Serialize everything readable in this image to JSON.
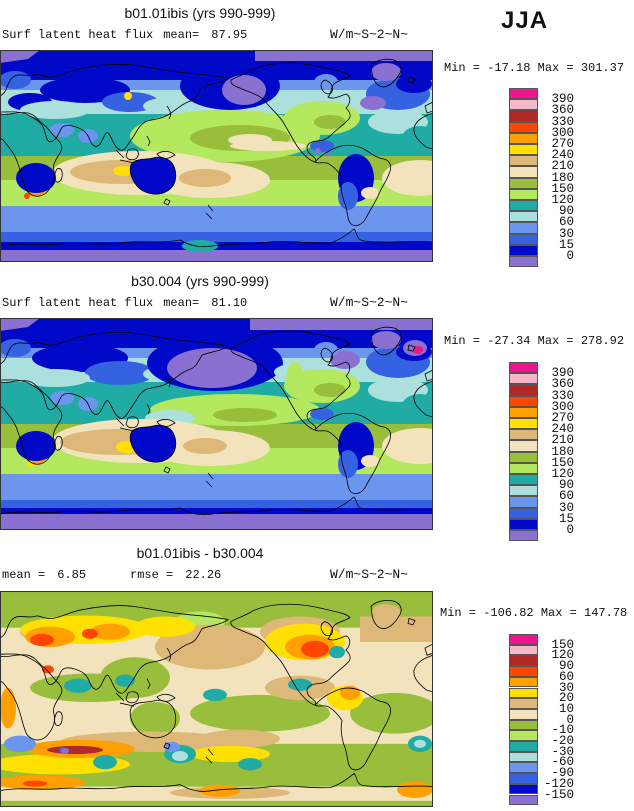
{
  "header": {
    "season_label": "JJA"
  },
  "palette": [
    "#F0148C",
    "#F8B7C8",
    "#B02828",
    "#FF4500",
    "#FFA000",
    "#FFE000",
    "#DDB878",
    "#F2E3BD",
    "#98BE3C",
    "#B4E85E",
    "#20ACA4",
    "#ACE0DC",
    "#6C95EE",
    "#3462E0",
    "#0009C8",
    "#8A70D0"
  ],
  "panels": [
    {
      "title": "b01.01ibis (yrs 990-999)",
      "var_label": "Surf latent heat flux",
      "mean_label": "mean=",
      "mean_value": "87.95",
      "units": "W/m~S~2~N~",
      "minmax_text": "Min = -17.18 Max = 301.37",
      "legend_labels": [
        "390",
        "360",
        "330",
        "300",
        "270",
        "240",
        "210",
        "180",
        "150",
        "120",
        "90",
        "60",
        "30",
        "15",
        "0"
      ]
    },
    {
      "title": "b30.004 (yrs 990-999)",
      "var_label": "Surf latent heat flux",
      "mean_label": "mean=",
      "mean_value": "81.10",
      "units": "W/m~S~2~N~",
      "minmax_text": "Min = -27.34 Max = 278.92",
      "legend_labels": [
        "390",
        "360",
        "330",
        "300",
        "270",
        "240",
        "210",
        "180",
        "150",
        "120",
        "90",
        "60",
        "30",
        "15",
        "0"
      ]
    },
    {
      "title": "b01.01ibis - b30.004",
      "mean_label": "mean =",
      "mean_value": "6.85",
      "rmse_label": "rmse =",
      "rmse_value": "22.26",
      "units": "W/m~S~2~N~",
      "minmax_text": "Min = -106.82 Max = 147.78",
      "legend_labels": [
        "150",
        "120",
        "90",
        "60",
        "30",
        "20",
        "10",
        "0",
        "-10",
        "-20",
        "-30",
        "-60",
        "-90",
        "-120",
        "-150"
      ]
    }
  ],
  "chart_data": [
    {
      "type": "heatmap",
      "title": "b01.01ibis (yrs 990-999)",
      "variable": "Surf latent heat flux",
      "season": "JJA",
      "units": "W/m~S~2~N~",
      "mean": 87.95,
      "min": -17.18,
      "max": 301.37,
      "contour_levels": [
        0,
        15,
        30,
        60,
        90,
        120,
        150,
        180,
        210,
        240,
        270,
        300,
        330,
        360,
        390
      ],
      "palette_high_to_low": [
        "#F0148C",
        "#F8B7C8",
        "#B02828",
        "#FF4500",
        "#FFA000",
        "#FFE000",
        "#DDB878",
        "#F2E3BD",
        "#98BE3C",
        "#B4E85E",
        "#20ACA4",
        "#ACE0DC",
        "#6C95EE",
        "#3462E0",
        "#0009C8",
        "#8A70D0"
      ],
      "projection": "global cylindrical equidistant, lon 0-360E, lat 90N-90S",
      "legend_position": "right"
    },
    {
      "type": "heatmap",
      "title": "b30.004 (yrs 990-999)",
      "variable": "Surf latent heat flux",
      "season": "JJA",
      "units": "W/m~S~2~N~",
      "mean": 81.1,
      "min": -27.34,
      "max": 278.92,
      "contour_levels": [
        0,
        15,
        30,
        60,
        90,
        120,
        150,
        180,
        210,
        240,
        270,
        300,
        330,
        360,
        390
      ],
      "palette_high_to_low": [
        "#F0148C",
        "#F8B7C8",
        "#B02828",
        "#FF4500",
        "#FFA000",
        "#FFE000",
        "#DDB878",
        "#F2E3BD",
        "#98BE3C",
        "#B4E85E",
        "#20ACA4",
        "#ACE0DC",
        "#6C95EE",
        "#3462E0",
        "#0009C8",
        "#8A70D0"
      ],
      "projection": "global cylindrical equidistant, lon 0-360E, lat 90N-90S",
      "legend_position": "right"
    },
    {
      "type": "heatmap",
      "title": "b01.01ibis - b30.004",
      "season": "JJA",
      "units": "W/m~S~2~N~",
      "mean": 6.85,
      "rmse": 22.26,
      "min": -106.82,
      "max": 147.78,
      "contour_levels": [
        -150,
        -120,
        -90,
        -60,
        -30,
        -20,
        -10,
        0,
        10,
        20,
        30,
        60,
        90,
        120,
        150
      ],
      "palette_high_to_low": [
        "#F0148C",
        "#F8B7C8",
        "#B02828",
        "#FF4500",
        "#FFA000",
        "#FFE000",
        "#DDB878",
        "#F2E3BD",
        "#98BE3C",
        "#B4E85E",
        "#20ACA4",
        "#ACE0DC",
        "#6C95EE",
        "#3462E0",
        "#0009C8",
        "#8A70D0"
      ],
      "projection": "global cylindrical equidistant, lon 0-360E, lat 90N-90S",
      "legend_position": "right"
    }
  ]
}
